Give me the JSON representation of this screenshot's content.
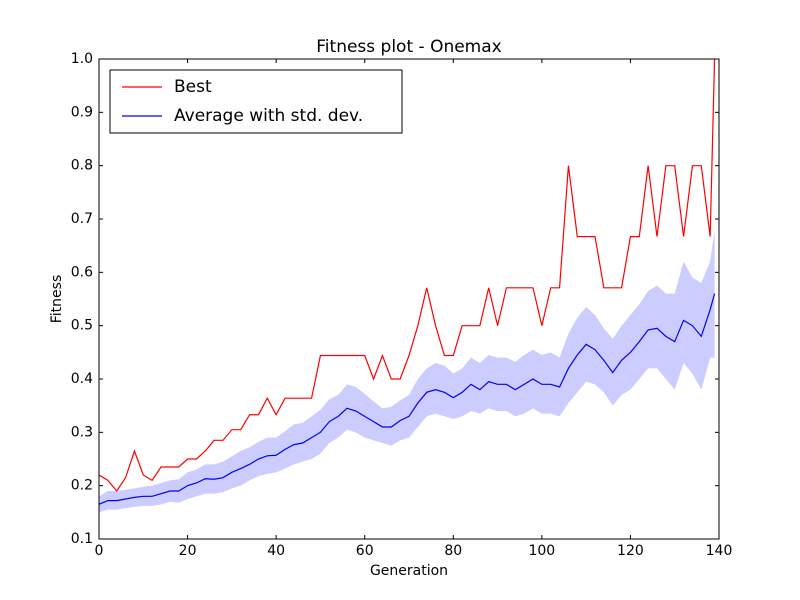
{
  "chart_data": {
    "type": "line",
    "title": "Fitness plot - Onemax",
    "xlabel": "Generation",
    "ylabel": "Fitness",
    "x": [
      0,
      2,
      4,
      6,
      8,
      10,
      12,
      14,
      16,
      18,
      20,
      22,
      24,
      26,
      28,
      30,
      32,
      34,
      36,
      38,
      40,
      42,
      44,
      46,
      48,
      50,
      52,
      54,
      56,
      58,
      60,
      62,
      64,
      66,
      68,
      70,
      72,
      74,
      76,
      78,
      80,
      82,
      84,
      86,
      88,
      90,
      92,
      94,
      96,
      98,
      100,
      102,
      104,
      106,
      108,
      110,
      112,
      114,
      116,
      118,
      120,
      122,
      124,
      126,
      128,
      130,
      132,
      134,
      136,
      138,
      139
    ],
    "series": [
      {
        "name": "Best",
        "color": "#ff0000",
        "values": [
          0.22,
          0.21,
          0.19,
          0.215,
          0.265,
          0.22,
          0.21,
          0.235,
          0.235,
          0.235,
          0.25,
          0.25,
          0.265,
          0.285,
          0.285,
          0.305,
          0.305,
          0.333,
          0.333,
          0.364,
          0.333,
          0.364,
          0.364,
          0.364,
          0.364,
          0.444,
          0.444,
          0.444,
          0.444,
          0.444,
          0.444,
          0.4,
          0.444,
          0.4,
          0.4,
          0.444,
          0.5,
          0.571,
          0.5,
          0.444,
          0.444,
          0.5,
          0.5,
          0.5,
          0.571,
          0.5,
          0.571,
          0.571,
          0.571,
          0.571,
          0.5,
          0.571,
          0.571,
          0.8,
          0.667,
          0.667,
          0.667,
          0.571,
          0.571,
          0.571,
          0.667,
          0.667,
          0.8,
          0.667,
          0.8,
          0.8,
          0.667,
          0.8,
          0.8,
          0.667,
          1.0
        ]
      },
      {
        "name": "Average with std. dev.",
        "color": "#0000ff",
        "band_color": "#ccccff",
        "values": [
          0.165,
          0.172,
          0.172,
          0.175,
          0.178,
          0.18,
          0.18,
          0.185,
          0.19,
          0.19,
          0.2,
          0.205,
          0.213,
          0.212,
          0.215,
          0.225,
          0.232,
          0.24,
          0.25,
          0.256,
          0.257,
          0.268,
          0.277,
          0.28,
          0.29,
          0.3,
          0.32,
          0.33,
          0.345,
          0.34,
          0.33,
          0.32,
          0.31,
          0.31,
          0.322,
          0.33,
          0.355,
          0.375,
          0.38,
          0.375,
          0.365,
          0.375,
          0.39,
          0.38,
          0.395,
          0.39,
          0.39,
          0.38,
          0.39,
          0.4,
          0.39,
          0.39,
          0.385,
          0.42,
          0.445,
          0.465,
          0.455,
          0.435,
          0.412,
          0.435,
          0.45,
          0.47,
          0.492,
          0.495,
          0.48,
          0.47,
          0.51,
          0.5,
          0.48,
          0.53,
          0.56
        ],
        "lower": [
          0.15,
          0.155,
          0.155,
          0.158,
          0.16,
          0.162,
          0.162,
          0.165,
          0.17,
          0.168,
          0.175,
          0.18,
          0.185,
          0.185,
          0.188,
          0.195,
          0.2,
          0.21,
          0.218,
          0.222,
          0.225,
          0.232,
          0.24,
          0.245,
          0.25,
          0.26,
          0.28,
          0.29,
          0.305,
          0.3,
          0.29,
          0.285,
          0.28,
          0.275,
          0.285,
          0.29,
          0.31,
          0.33,
          0.335,
          0.33,
          0.325,
          0.33,
          0.34,
          0.335,
          0.345,
          0.34,
          0.34,
          0.33,
          0.335,
          0.345,
          0.335,
          0.335,
          0.33,
          0.355,
          0.375,
          0.395,
          0.39,
          0.375,
          0.35,
          0.37,
          0.38,
          0.4,
          0.42,
          0.42,
          0.4,
          0.38,
          0.43,
          0.41,
          0.38,
          0.44,
          0.44
        ],
        "upper": [
          0.18,
          0.19,
          0.19,
          0.192,
          0.195,
          0.198,
          0.2,
          0.205,
          0.21,
          0.212,
          0.225,
          0.23,
          0.24,
          0.24,
          0.245,
          0.255,
          0.265,
          0.272,
          0.282,
          0.29,
          0.29,
          0.302,
          0.315,
          0.318,
          0.33,
          0.342,
          0.362,
          0.37,
          0.39,
          0.385,
          0.372,
          0.358,
          0.345,
          0.348,
          0.36,
          0.37,
          0.4,
          0.42,
          0.43,
          0.425,
          0.41,
          0.42,
          0.44,
          0.43,
          0.445,
          0.44,
          0.44,
          0.432,
          0.445,
          0.455,
          0.445,
          0.45,
          0.44,
          0.485,
          0.515,
          0.535,
          0.52,
          0.495,
          0.475,
          0.5,
          0.52,
          0.54,
          0.565,
          0.575,
          0.56,
          0.56,
          0.62,
          0.59,
          0.58,
          0.62,
          0.68
        ]
      }
    ],
    "xlim": [
      0,
      140
    ],
    "xticks": [
      0,
      20,
      40,
      60,
      80,
      100,
      120,
      140
    ],
    "ylim": [
      0.1,
      1.0
    ],
    "yticks": [
      0.1,
      0.2,
      0.3,
      0.4,
      0.5,
      0.6,
      0.7,
      0.8,
      0.9,
      {
        "value": 1.0,
        "label": "1.0"
      }
    ],
    "grid": false,
    "legend": "upper-left"
  }
}
